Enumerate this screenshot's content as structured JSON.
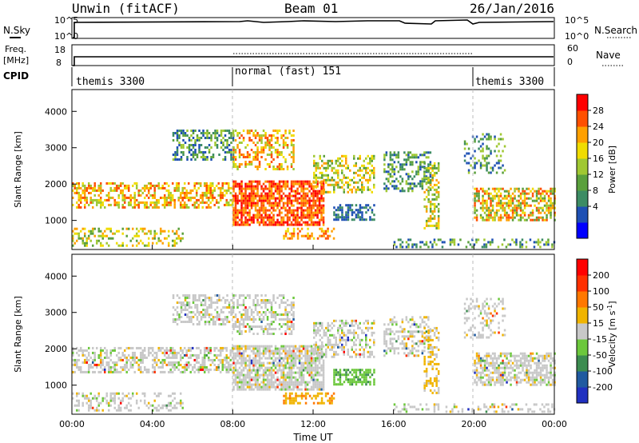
{
  "header": {
    "station": "Unwin (fitACF)",
    "beam": "Beam 01",
    "date": "26/Jan/2016"
  },
  "nsky_panel": {
    "left_label": "N.Sky",
    "right_label": "N.Search",
    "left_ticks": [
      "10^5",
      "10^0"
    ],
    "right_ticks": [
      "10^5",
      "10^0"
    ]
  },
  "freq_panel": {
    "label_top": "Freq.",
    "label_unit": "[MHz]",
    "ticks": [
      "18",
      "8"
    ],
    "right_ticks": [
      "60",
      "0"
    ],
    "right_label": "Nave"
  },
  "cpid_panel": {
    "label": "CPID",
    "segments": [
      "themis 3300",
      "normal (fast) 151",
      "themis 3300"
    ]
  },
  "x_axis": {
    "label": "Time UT",
    "ticks": [
      "00:00",
      "04:00",
      "08:00",
      "12:00",
      "16:00",
      "20:00",
      "00:00"
    ]
  },
  "chart_data": [
    {
      "type": "heatmap",
      "name": "power",
      "ylabel": "Slant Range [km]",
      "yticks": [
        1000,
        2000,
        3000,
        4000
      ],
      "ylim": [
        200,
        4600
      ],
      "xlim_hours": [
        0,
        24
      ],
      "colorbar": {
        "label": "Power [dB]",
        "ticks": [
          "28",
          "24",
          "20",
          "16",
          "12",
          "8",
          "4"
        ],
        "colors": [
          "#0000ff",
          "#1e50b4",
          "#3c8c64",
          "#5aa03c",
          "#a0c832",
          "#f0dc00",
          "#ffa000",
          "#ff5000",
          "#ff0000"
        ]
      }
    },
    {
      "type": "heatmap",
      "name": "velocity",
      "ylabel": "Slant Range [km]",
      "yticks": [
        1000,
        2000,
        3000,
        4000
      ],
      "ylim": [
        200,
        4600
      ],
      "xlim_hours": [
        0,
        24
      ],
      "colorbar": {
        "label": "Velocity [m s^-1]",
        "ticks": [
          "200",
          "100",
          "50",
          "15",
          "-15",
          "-50",
          "-100",
          "-200"
        ],
        "colors": [
          "#2030c0",
          "#205aa0",
          "#3c8c50",
          "#6cc83c",
          "#c8c8c8",
          "#f0b400",
          "#ff7800",
          "#ff3000",
          "#ff0000"
        ]
      }
    }
  ]
}
